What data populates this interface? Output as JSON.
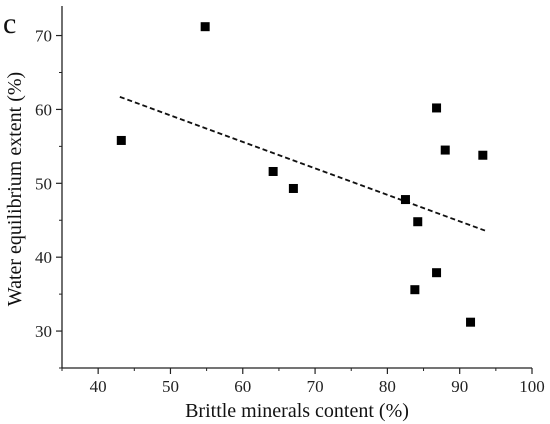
{
  "panel_label": "c",
  "chart_data": {
    "type": "scatter",
    "title": "",
    "xlabel": "Brittle minerals content (%)",
    "ylabel": "Water equilibrium extent (%)",
    "xlim": [
      35,
      100
    ],
    "ylim": [
      25,
      74
    ],
    "xticks": [
      40,
      50,
      60,
      70,
      80,
      90,
      100
    ],
    "yticks": [
      30,
      40,
      50,
      60,
      70
    ],
    "grid": false,
    "marker": "square",
    "marker_color": "#000000",
    "points": [
      {
        "x": 43.2,
        "y": 55.8
      },
      {
        "x": 54.8,
        "y": 71.2
      },
      {
        "x": 64.2,
        "y": 51.6
      },
      {
        "x": 67.0,
        "y": 49.3
      },
      {
        "x": 82.5,
        "y": 47.8
      },
      {
        "x": 84.2,
        "y": 44.8
      },
      {
        "x": 83.8,
        "y": 35.6
      },
      {
        "x": 86.8,
        "y": 60.2
      },
      {
        "x": 86.8,
        "y": 37.9
      },
      {
        "x": 88.0,
        "y": 54.5
      },
      {
        "x": 91.5,
        "y": 31.2
      },
      {
        "x": 93.2,
        "y": 53.8
      }
    ],
    "trendline": {
      "style": "dashed",
      "x": [
        43,
        93.5
      ],
      "y": [
        61.7,
        43.6
      ]
    }
  }
}
